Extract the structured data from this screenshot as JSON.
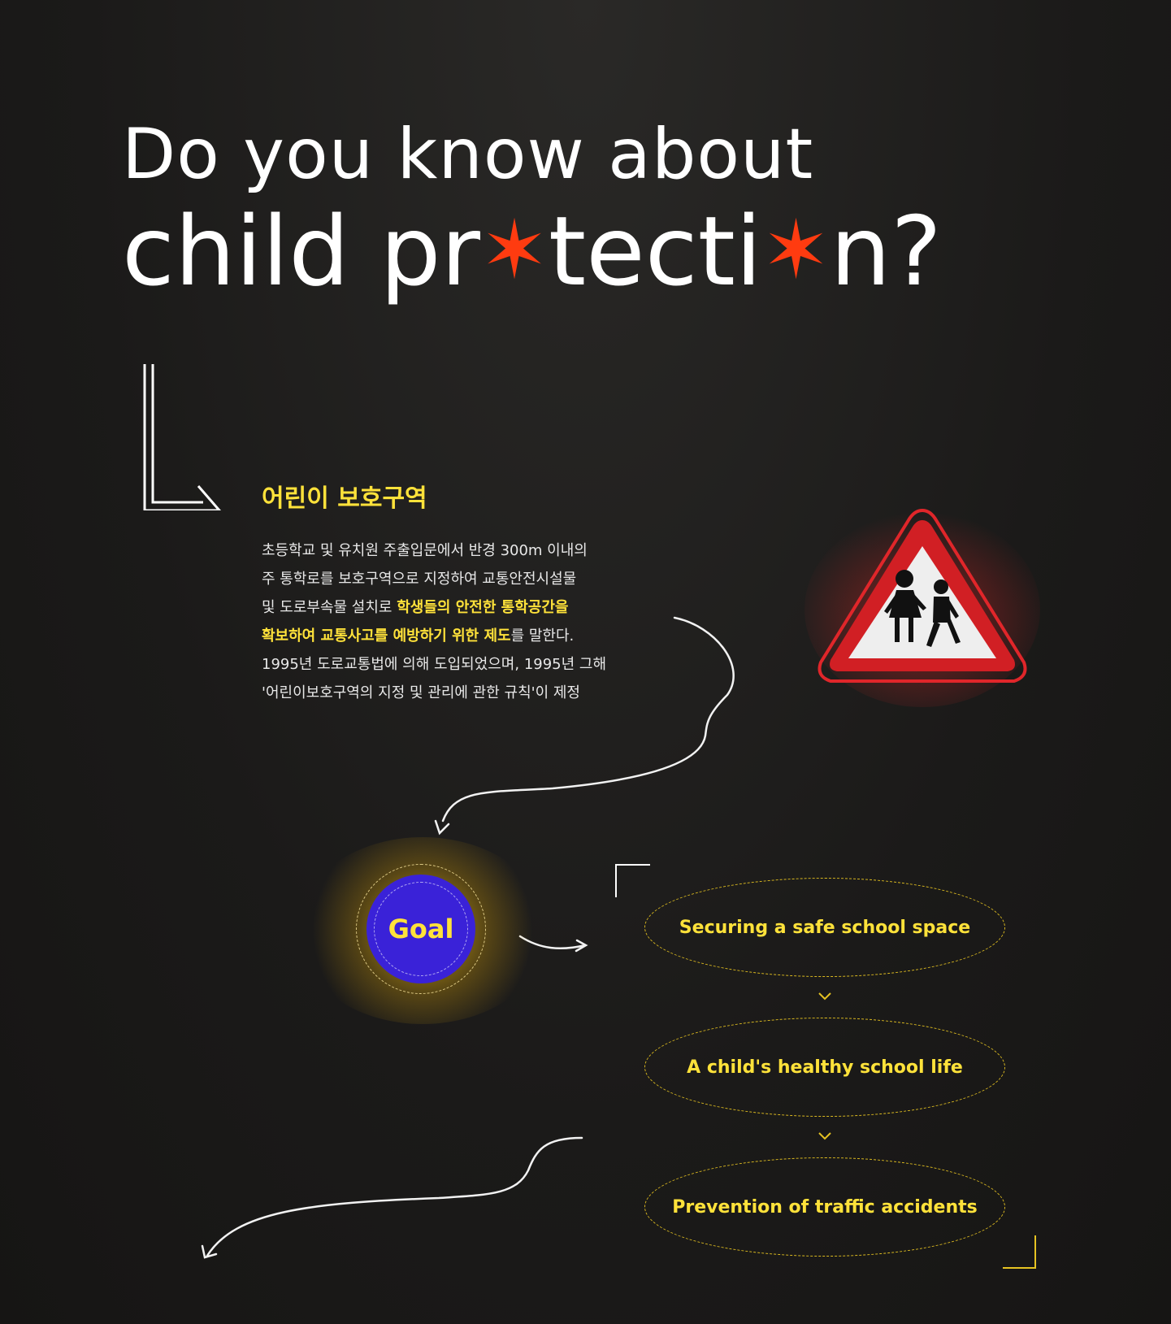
{
  "title": {
    "line1": "Do you know about",
    "line2_a": "child pr",
    "line2_b": "tecti",
    "line2_c": "n?"
  },
  "section": {
    "heading": "어린이 보호구역",
    "body": [
      {
        "parts": [
          {
            "t": "초등학교 및 유치원 주출입문에서 반경 300m 이내의",
            "hl": false
          }
        ]
      },
      {
        "parts": [
          {
            "t": "주 통학로를 보호구역으로 지정하여 교통안전시설물",
            "hl": false
          }
        ]
      },
      {
        "parts": [
          {
            "t": "및 도로부속물 설치로 ",
            "hl": false
          },
          {
            "t": "학생들의 안전한 통학공간을",
            "hl": true
          }
        ]
      },
      {
        "parts": [
          {
            "t": "확보하여 교통사고를 예방하기 위한 제도",
            "hl": true
          },
          {
            "t": "를 말한다.",
            "hl": false
          }
        ]
      },
      {
        "parts": [
          {
            "t": "1995년 도로교통법에 의해 도입되었으며, 1995년 그해",
            "hl": false
          }
        ]
      },
      {
        "parts": [
          {
            "t": "'어린이보호구역의 지정 및 관리에 관한 규칙'이 제정",
            "hl": false
          }
        ]
      }
    ]
  },
  "goal": {
    "label": "Goal",
    "items": [
      "Securing a safe school space",
      "A child's healthy school life",
      "Prevention of traffic accidents"
    ]
  },
  "colors": {
    "accent_yellow": "#ffe23a",
    "star_red": "#ff3b10",
    "goal_blue": "#3a22d8",
    "sign_red": "#e0262a"
  },
  "icons": {
    "sign": "children-crossing-warning-sign-icon",
    "star": "asterisk-star-icon"
  }
}
